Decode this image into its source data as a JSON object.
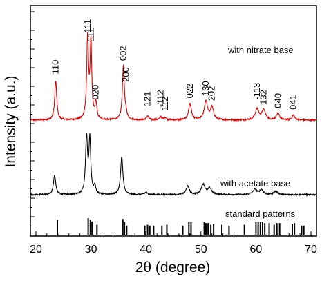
{
  "chart_data": {
    "type": "line",
    "xlabel": "2θ (degree)",
    "ylabel": "Intensity (a.u.)",
    "xlim": [
      19,
      71
    ],
    "x_ticks": [
      20,
      30,
      40,
      50,
      60,
      70
    ],
    "y_ticks_labeled": false,
    "grid": false,
    "annotations": [
      "with nitrate base",
      "with acetate base",
      "standard patterns"
    ],
    "colors": {
      "nitrate": "#e00000",
      "acetate": "#000000",
      "standard": "#000000"
    },
    "series": [
      {
        "name": "with nitrate base",
        "baseline": 0.0,
        "peaks": [
          {
            "pos": 23.6,
            "h": 0.48,
            "w": 0.22,
            "label": "110"
          },
          {
            "pos": 29.4,
            "h": 1.0,
            "w": 0.2,
            "label": "-111"
          },
          {
            "pos": 30.0,
            "h": 0.93,
            "w": 0.18,
            "label": "111"
          },
          {
            "pos": 30.9,
            "h": 0.2,
            "w": 0.2,
            "label": "020"
          },
          {
            "pos": 35.9,
            "h": 0.66,
            "w": 0.22,
            "label": "002"
          },
          {
            "pos": 36.4,
            "h": 0.06,
            "w": 0.2,
            "label": "200"
          },
          {
            "pos": 40.3,
            "h": 0.05,
            "w": 0.25,
            "label": "121"
          },
          {
            "pos": 42.7,
            "h": 0.04,
            "w": 0.25,
            "label": "-112"
          },
          {
            "pos": 43.5,
            "h": 0.03,
            "w": 0.25,
            "label": "112"
          },
          {
            "pos": 48.0,
            "h": 0.2,
            "w": 0.3,
            "label": "022"
          },
          {
            "pos": 50.9,
            "h": 0.23,
            "w": 0.35,
            "label": "130"
          },
          {
            "pos": 52.0,
            "h": 0.15,
            "w": 0.35,
            "label": "202"
          },
          {
            "pos": 60.2,
            "h": 0.13,
            "w": 0.4,
            "label": "-113"
          },
          {
            "pos": 61.4,
            "h": 0.12,
            "w": 0.4,
            "label": "132"
          },
          {
            "pos": 64.0,
            "h": 0.08,
            "w": 0.35,
            "label": "040"
          },
          {
            "pos": 66.8,
            "h": 0.06,
            "w": 0.3,
            "label": "041"
          }
        ]
      },
      {
        "name": "with acetate base",
        "baseline": 0.0,
        "peaks": [
          {
            "pos": 23.4,
            "h": 0.28,
            "w": 0.25
          },
          {
            "pos": 29.2,
            "h": 0.82,
            "w": 0.22
          },
          {
            "pos": 29.8,
            "h": 0.78,
            "w": 0.2
          },
          {
            "pos": 30.7,
            "h": 0.12,
            "w": 0.2
          },
          {
            "pos": 35.6,
            "h": 0.55,
            "w": 0.25
          },
          {
            "pos": 40.0,
            "h": 0.03,
            "w": 0.3
          },
          {
            "pos": 47.6,
            "h": 0.12,
            "w": 0.35
          },
          {
            "pos": 50.4,
            "h": 0.15,
            "w": 0.4
          },
          {
            "pos": 51.6,
            "h": 0.09,
            "w": 0.4
          },
          {
            "pos": 59.8,
            "h": 0.08,
            "w": 0.4
          },
          {
            "pos": 61.0,
            "h": 0.07,
            "w": 0.4
          },
          {
            "pos": 63.6,
            "h": 0.05,
            "w": 0.4
          }
        ]
      }
    ],
    "standard_lines": [
      {
        "x": 23.9,
        "h": 0.9
      },
      {
        "x": 29.5,
        "h": 1.0
      },
      {
        "x": 29.9,
        "h": 0.9
      },
      {
        "x": 30.2,
        "h": 0.8
      },
      {
        "x": 31.1,
        "h": 0.6
      },
      {
        "x": 35.8,
        "h": 0.95
      },
      {
        "x": 36.1,
        "h": 0.75
      },
      {
        "x": 36.5,
        "h": 0.55
      },
      {
        "x": 39.8,
        "h": 0.55
      },
      {
        "x": 40.3,
        "h": 0.6
      },
      {
        "x": 40.7,
        "h": 0.55
      },
      {
        "x": 41.4,
        "h": 0.55
      },
      {
        "x": 42.9,
        "h": 0.55
      },
      {
        "x": 43.8,
        "h": 0.6
      },
      {
        "x": 46.7,
        "h": 0.55
      },
      {
        "x": 47.8,
        "h": 0.75
      },
      {
        "x": 48.2,
        "h": 0.75
      },
      {
        "x": 50.6,
        "h": 0.75
      },
      {
        "x": 50.9,
        "h": 0.7
      },
      {
        "x": 51.3,
        "h": 0.7
      },
      {
        "x": 51.8,
        "h": 0.6
      },
      {
        "x": 52.3,
        "h": 0.65
      },
      {
        "x": 53.8,
        "h": 0.6
      },
      {
        "x": 55.1,
        "h": 0.55
      },
      {
        "x": 57.9,
        "h": 0.6
      },
      {
        "x": 60.0,
        "h": 0.75
      },
      {
        "x": 60.4,
        "h": 0.75
      },
      {
        "x": 60.8,
        "h": 0.75
      },
      {
        "x": 61.2,
        "h": 0.75
      },
      {
        "x": 61.6,
        "h": 0.7
      },
      {
        "x": 62.4,
        "h": 0.7
      },
      {
        "x": 63.3,
        "h": 0.6
      },
      {
        "x": 63.8,
        "h": 0.7
      },
      {
        "x": 64.3,
        "h": 0.7
      },
      {
        "x": 66.6,
        "h": 0.65
      },
      {
        "x": 67.0,
        "h": 0.7
      },
      {
        "x": 68.3,
        "h": 0.55
      },
      {
        "x": 68.7,
        "h": 0.55
      }
    ]
  }
}
